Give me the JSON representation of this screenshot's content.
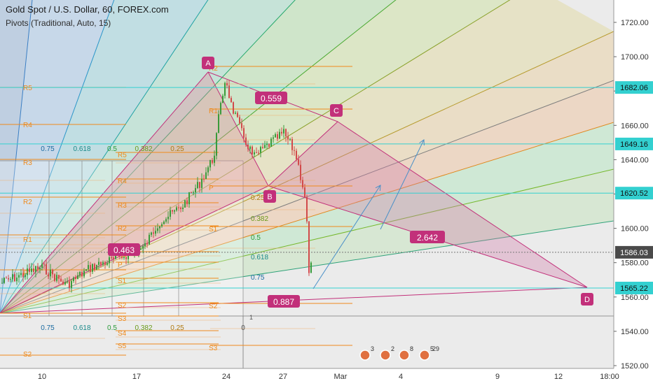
{
  "header": {
    "symbol_line": "Gold Spot / U.S. Dollar, 60, FOREX.com",
    "indicator_line": "Pivots (Traditional, Auto, 15)"
  },
  "colors": {
    "orange": "#ef8a1c",
    "pink": "#c2307a",
    "cyan": "#33d0d0",
    "blue_arrow": "#4a90c8",
    "axis_text": "#333333"
  },
  "icons": [
    "calendar-flag-icon",
    "calendar-flag-icon",
    "calendar-flag-icon",
    "calendar-flag-icon"
  ],
  "chart_data": {
    "type": "candlestick",
    "title": "Gold Spot / U.S. Dollar, 60, FOREX.com",
    "y_axis": {
      "min": 1519,
      "max": 1738,
      "ticks": [
        "1720.00",
        "1700.00",
        "1680.00",
        "1660.00",
        "1640.00",
        "1620.00",
        "1600.00",
        "1580.00",
        "1560.00",
        "1540.00",
        "1520.00"
      ]
    },
    "x_axis": {
      "ticks": [
        "10",
        "17",
        "24",
        "27",
        "Mar",
        "4",
        "9",
        "12",
        "18:00"
      ]
    },
    "price_badges": [
      {
        "value": "1682.06",
        "color": "cyan"
      },
      {
        "value": "1649.16",
        "color": "cyan"
      },
      {
        "value": "1620.52",
        "color": "cyan"
      },
      {
        "value": "1586.03",
        "color": "dark"
      },
      {
        "value": "1565.22",
        "color": "cyan"
      }
    ],
    "xabcd_points": [
      {
        "label": "A",
        "price": 1690
      },
      {
        "label": "B",
        "price": 1623
      },
      {
        "label": "C",
        "price": 1661
      },
      {
        "label": "D",
        "price": 1564
      }
    ],
    "xabcd_ratios": [
      "0.559",
      "0.463",
      "2.642",
      "0.887"
    ],
    "fib_levels": [
      "0.75",
      "0.618",
      "0.5",
      "0.382",
      "0.25"
    ],
    "fib_levels_bottom": [
      "0.75",
      "0.618",
      "0.5",
      "0.382",
      "0.25",
      "0"
    ],
    "fib_right_levels": [
      "0.25",
      "0.382",
      "0.5",
      "0.618",
      "0.75"
    ],
    "fib_right_edge": "1",
    "pivot_labels_left": [
      "R5",
      "R4",
      "R3",
      "R2",
      "R1",
      "P",
      "S1",
      "S2"
    ],
    "pivot_labels_mid": [
      "R5",
      "R4",
      "R3",
      "R2",
      "R1",
      "P",
      "S1",
      "S2",
      "S3",
      "S4",
      "S5"
    ],
    "pivot_labels_right": [
      "R2",
      "R1",
      "P",
      "S1",
      "S2",
      "S3"
    ],
    "event_counts": [
      "3",
      "2",
      "8",
      "5",
      "29"
    ]
  }
}
